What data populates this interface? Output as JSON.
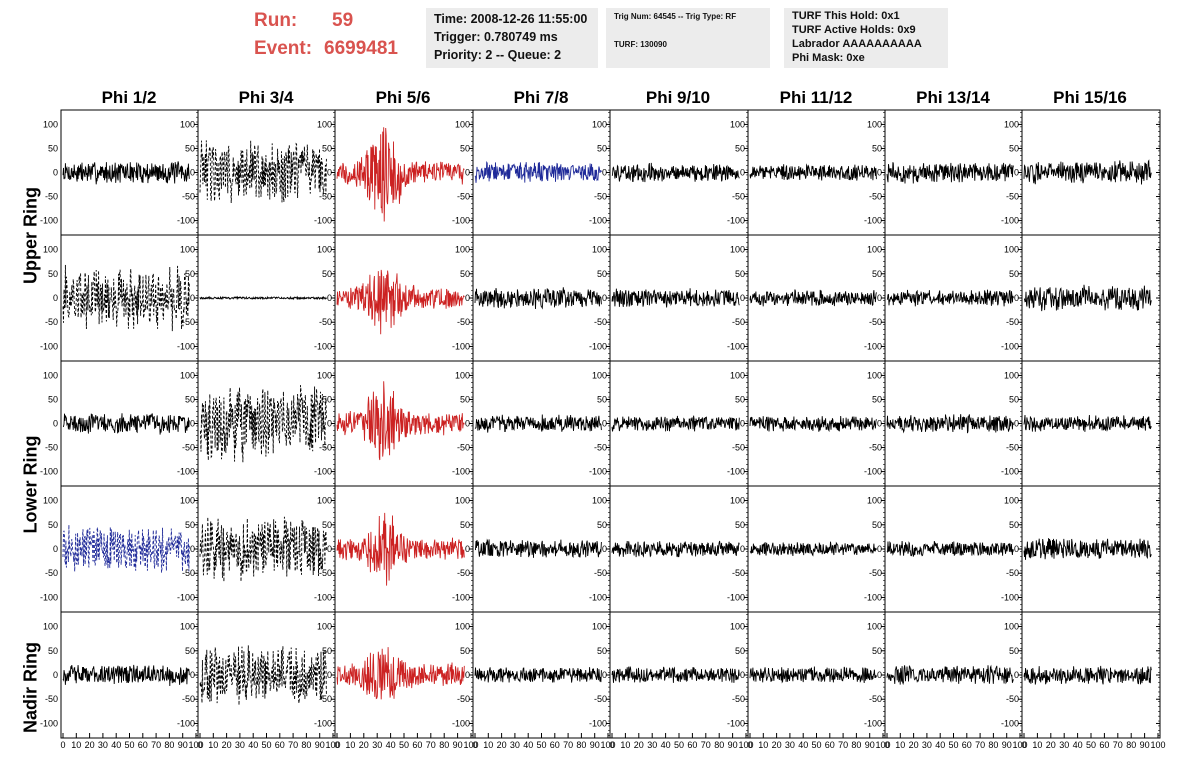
{
  "header": {
    "run_label": "Run:",
    "run_value": "59",
    "event_label": "Event:",
    "event_value": "6699481",
    "time_box": [
      "Time: 2008-12-26 11:55:00",
      "Trigger: 0.780749 ms",
      "Priority: 2 -- Queue: 2"
    ],
    "trig_box": [
      "Trig Num: 64545 -- Trig Type: RF",
      "TURF: 130090"
    ],
    "turf_box": [
      "TURF This Hold: 0x1",
      "TURF Active Holds: 0x9",
      "Labrador AAAAAAAAAA",
      "Phi Mask: 0xe"
    ]
  },
  "colors": {
    "accent_red": "#d9534f",
    "info_bg": "#ececec"
  },
  "chart_data": {
    "type": "line",
    "columns": [
      "Phi 1/2",
      "Phi 3/4",
      "Phi 5/6",
      "Phi 7/8",
      "Phi 9/10",
      "Phi 11/12",
      "Phi 13/14",
      "Phi 15/16"
    ],
    "rows": [
      "Upper Ring",
      "Lower Ring",
      "Nadir Ring"
    ],
    "xlim": [
      0,
      100
    ],
    "xticks": [
      0,
      10,
      20,
      30,
      40,
      50,
      60,
      70,
      80,
      90,
      100
    ],
    "xtick_labels": [
      "0",
      "10",
      "20",
      "30",
      "40",
      "50",
      "60",
      "70",
      "80",
      "90",
      "100"
    ],
    "ylim": [
      -130,
      130
    ],
    "yticks": [
      100,
      50,
      0,
      -50,
      -100
    ],
    "ytick_labels": [
      "100",
      "50",
      "0",
      "-50",
      "-100"
    ],
    "line_colors": {
      "black": "#000000",
      "red": "#cc2222",
      "blue": "#1f2a99"
    },
    "panels": [
      [
        "black:solid:20",
        "black:dashed:55",
        "red:burst:85",
        "blue:solid:18",
        "black:solid:16",
        "black:solid:14",
        "black:solid:18",
        "black:solid:20"
      ],
      [
        "black:dashed:55",
        "black:flat:4",
        "red:burst:45",
        "black:solid:18",
        "black:solid:16",
        "black:solid:14",
        "black:solid:14",
        "black:solid:22"
      ],
      [
        "black:solid:18",
        "black:dashed:65",
        "red:burst:60",
        "black:solid:15",
        "black:solid:14",
        "black:solid:14",
        "black:solid:16",
        "black:solid:14"
      ],
      [
        "blue:dashed:40",
        "black:dashed:55",
        "red:burst:45",
        "black:solid:16",
        "black:solid:14",
        "black:solid:12",
        "black:solid:14",
        "black:solid:18"
      ],
      [
        "black:solid:18",
        "black:dashed:50",
        "red:burst:40",
        "black:solid:14",
        "black:solid:14",
        "black:solid:14",
        "black:solid:16",
        "black:solid:16"
      ]
    ]
  }
}
